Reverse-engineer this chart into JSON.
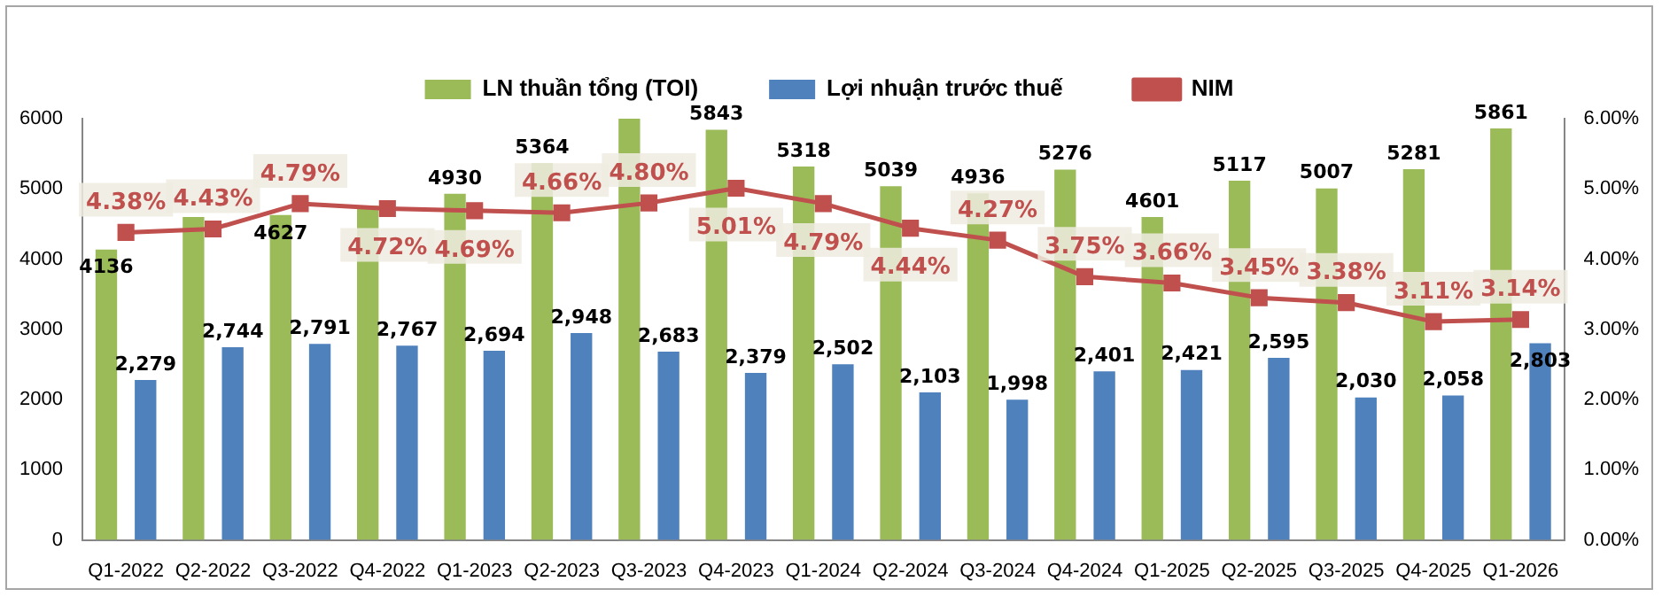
{
  "chart_data": {
    "type": "bar",
    "categories": [
      "Q1-2022",
      "Q2-2022",
      "Q3-2022",
      "Q4-2022",
      "Q1-2023",
      "Q2-2023",
      "Q3-2023",
      "Q4-2023",
      "Q1-2024",
      "Q2-2024",
      "Q3-2024",
      "Q4-2024",
      "Q1-2025",
      "Q2-2025",
      "Q3-2025",
      "Q4-2025",
      "Q1-2026"
    ],
    "series": [
      {
        "name": "LN thuần tổng (TOI)",
        "color": "#9bbb59",
        "values": [
          4136,
          4600,
          4627,
          4760,
          4930,
          5364,
          6000,
          5843,
          5318,
          5039,
          4936,
          5276,
          4601,
          5117,
          5007,
          5281,
          5861
        ],
        "value_labels": [
          "4136",
          null,
          "4627",
          null,
          "4930",
          "5364",
          null,
          "5843",
          "5318",
          "5039",
          "4936",
          "5276",
          "4601",
          "5117",
          "5007",
          "5281",
          "5861"
        ]
      },
      {
        "name": "Lợi nhuận trước thuế",
        "color": "#4f81bd",
        "values": [
          2279,
          2744,
          2791,
          2767,
          2694,
          2948,
          2683,
          2379,
          2502,
          2103,
          1998,
          2401,
          2421,
          2595,
          2030,
          2058,
          2803
        ],
        "value_labels": [
          "2,279",
          "2,744",
          "2,791",
          "2,767",
          "2,694",
          "2,948",
          "2,683",
          "2,379",
          "2,502",
          "2,103",
          "1,998",
          "2,401",
          "2,421",
          "2,595",
          "2,030",
          "2,058",
          "2,803"
        ]
      },
      {
        "name": "NIM",
        "type": "line",
        "axis": "y2",
        "color": "#c0504d",
        "marker": "square",
        "values": [
          4.38,
          4.43,
          4.79,
          4.72,
          4.69,
          4.66,
          4.8,
          5.01,
          4.79,
          4.44,
          4.27,
          3.75,
          3.66,
          3.45,
          3.38,
          3.11,
          3.14
        ],
        "value_labels": [
          "4.38%",
          "4.43%",
          "4.79%",
          "4.72%",
          "4.69%",
          "4.66%",
          "4.80%",
          "5.01%",
          "4.79%",
          "4.44%",
          "4.27%",
          "3.75%",
          "3.66%",
          "3.45%",
          "3.38%",
          "3.11%",
          "3.14%"
        ]
      }
    ],
    "ylim": [
      0,
      6000
    ],
    "yticks": [
      0,
      1000,
      2000,
      3000,
      4000,
      5000,
      6000
    ],
    "y2lim": [
      0,
      6
    ],
    "y2ticks": [
      {
        "value": 0,
        "label": "0.00%"
      },
      {
        "value": 1,
        "label": "1.00%"
      },
      {
        "value": 2,
        "label": "2.00%"
      },
      {
        "value": 3,
        "label": "3.00%"
      },
      {
        "value": 4,
        "label": "4.00%"
      },
      {
        "value": 5,
        "label": "5.00%"
      },
      {
        "value": 6,
        "label": "6.00%"
      }
    ],
    "grid": false,
    "legend": "top"
  }
}
